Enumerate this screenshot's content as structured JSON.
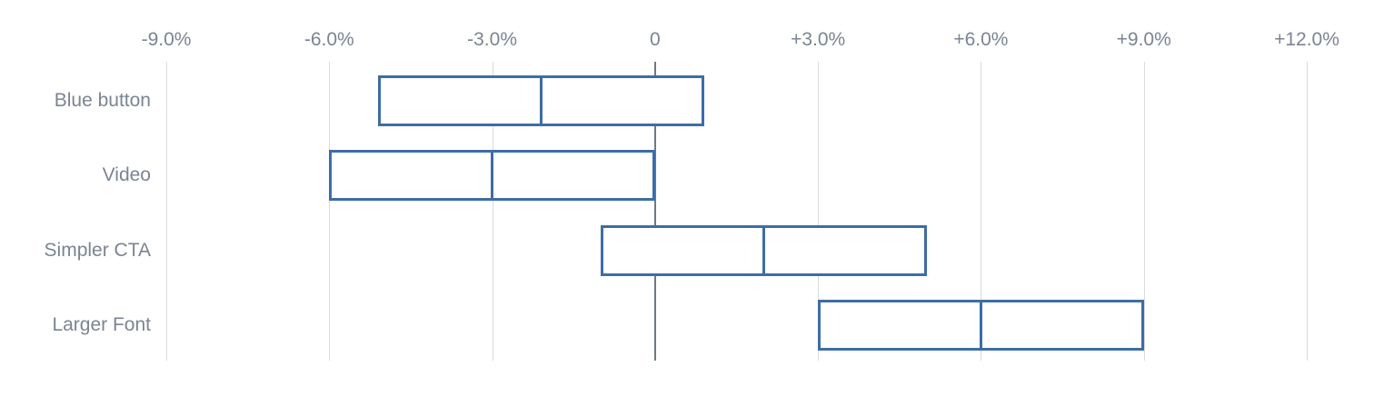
{
  "chart_data": {
    "type": "range-bar",
    "orientation": "horizontal",
    "title": "",
    "xlabel": "",
    "ylabel": "",
    "categories": [
      "Blue button",
      "Video",
      "Simpler CTA",
      "Larger Font"
    ],
    "series": [
      {
        "name": "Blue button",
        "low_pct": -5.1,
        "mid_pct": -2.1,
        "high_pct": 0.9
      },
      {
        "name": "Video",
        "low_pct": -6.0,
        "mid_pct": -3.0,
        "high_pct": 0.0
      },
      {
        "name": "Simpler CTA",
        "low_pct": -1.0,
        "mid_pct": 2.0,
        "high_pct": 5.0
      },
      {
        "name": "Larger Font",
        "low_pct": 3.0,
        "mid_pct": 6.0,
        "high_pct": 9.0
      }
    ],
    "x_axis": {
      "range": [
        -9,
        12
      ],
      "gridlines": true,
      "ticks": [
        {
          "value": -9,
          "label": "-9.0%"
        },
        {
          "value": -6,
          "label": "-6.0%"
        },
        {
          "value": -3,
          "label": "-3.0%"
        },
        {
          "value": 0,
          "label": "0"
        },
        {
          "value": 3,
          "label": "+3.0%"
        },
        {
          "value": 6,
          "label": "+6.0%"
        },
        {
          "value": 9,
          "label": "+9.0%"
        },
        {
          "value": 12,
          "label": "+12.0%"
        }
      ]
    },
    "legend": null,
    "colors": {
      "box_border": "#3d6da6",
      "box_fill": "#ffffff",
      "gridline": "#d9dbde",
      "zero_line": "#6e7987",
      "text": "#7b8492"
    }
  }
}
